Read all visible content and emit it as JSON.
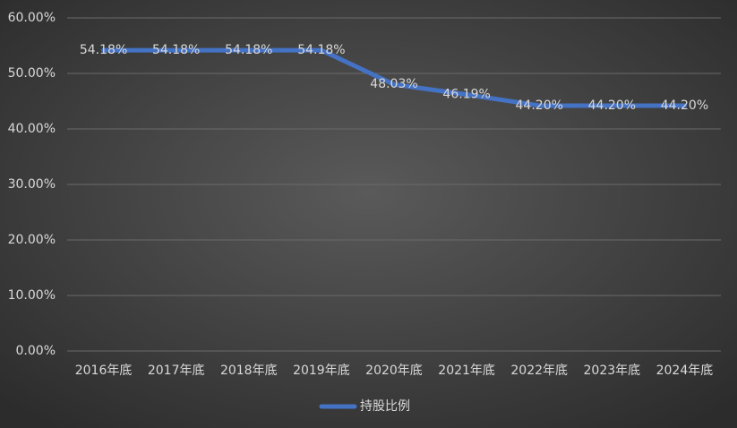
{
  "chart_data": {
    "type": "line",
    "categories": [
      "2016年底",
      "2017年底",
      "2018年底",
      "2019年底",
      "2020年底",
      "2021年底",
      "2022年底",
      "2023年底",
      "2024年底"
    ],
    "series": [
      {
        "name": "持股比例",
        "color": "#4472c4",
        "values": [
          54.18,
          54.18,
          54.18,
          54.18,
          48.03,
          46.19,
          44.2,
          44.2,
          44.2
        ],
        "value_labels": [
          "54.18%",
          "54.18%",
          "54.18%",
          "54.18%",
          "48.03%",
          "46.19%",
          "44.20%",
          "44.20%",
          "44.20%"
        ]
      }
    ],
    "ylim": [
      0,
      60
    ],
    "yticks": [
      {
        "value": 0,
        "label": "0.00%"
      },
      {
        "value": 10,
        "label": "10.00%"
      },
      {
        "value": 20,
        "label": "20.00%"
      },
      {
        "value": 30,
        "label": "30.00%"
      },
      {
        "value": 40,
        "label": "40.00%"
      },
      {
        "value": 50,
        "label": "50.00%"
      },
      {
        "value": 60,
        "label": "60.00%"
      }
    ],
    "grid": true,
    "legend": "bottom"
  }
}
